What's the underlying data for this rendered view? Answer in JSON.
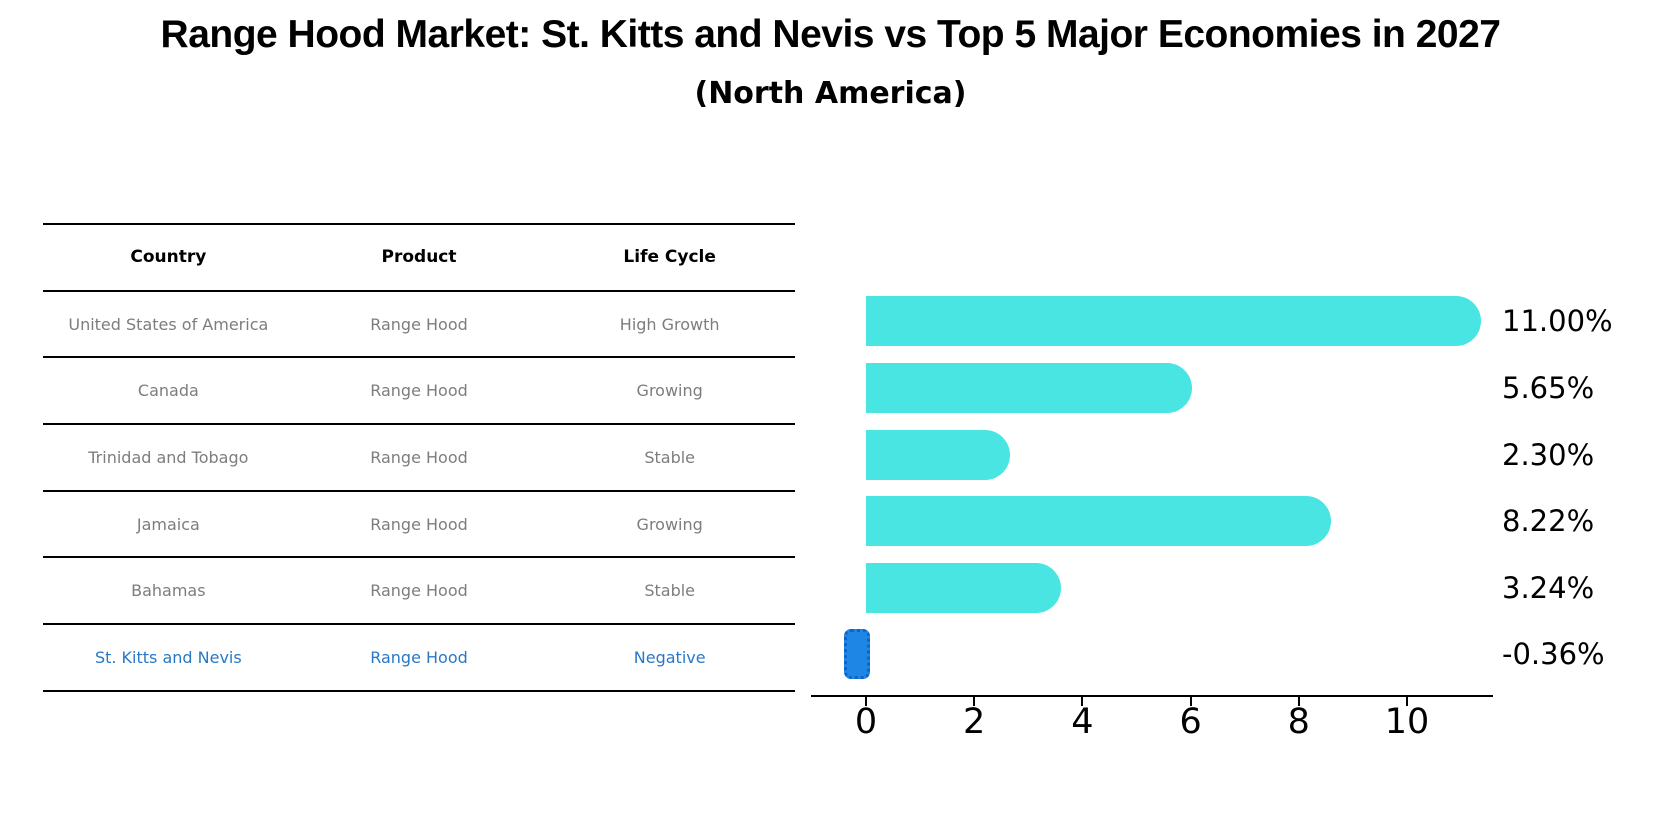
{
  "chart_data": {
    "type": "bar",
    "orientation": "horizontal",
    "title": "Range Hood Market: St. Kitts and Nevis vs Top 5 Major Economies in 2027",
    "subtitle": "(North America)",
    "categories": [
      "United States of America",
      "Canada",
      "Trinidad and Tobago",
      "Jamaica",
      "Bahamas",
      "St. Kitts and Nevis"
    ],
    "values": [
      11.0,
      5.65,
      2.3,
      8.22,
      3.24,
      -0.36
    ],
    "value_labels": [
      "11.00%",
      "5.65%",
      "2.30%",
      "8.22%",
      "3.24%",
      "-0.36%"
    ],
    "unit": "percent",
    "xlabel": "",
    "ylabel": "",
    "xticks": [
      "0",
      "2",
      "4",
      "6",
      "8",
      "10"
    ],
    "xtick_values": [
      0,
      2,
      4,
      6,
      8,
      10
    ],
    "xlim": [
      -1.0,
      11.6
    ],
    "grid": false,
    "legend": false,
    "bar_color": "#48e5e2",
    "highlight_bar_color": "#1e87e5",
    "highlight_bar_border_color": "#1161c9",
    "highlight_category": "St. Kitts and Nevis"
  },
  "table": {
    "headers": [
      "Country",
      "Product",
      "Life Cycle"
    ],
    "rows": [
      {
        "country": "United States of America",
        "product": "Range Hood",
        "life_cycle": "High Growth",
        "highlight": false
      },
      {
        "country": "Canada",
        "product": "Range Hood",
        "life_cycle": "Growing",
        "highlight": false
      },
      {
        "country": "Trinidad and Tobago",
        "product": "Range Hood",
        "life_cycle": "Stable",
        "highlight": false
      },
      {
        "country": "Jamaica",
        "product": "Range Hood",
        "life_cycle": "Growing",
        "highlight": false
      },
      {
        "country": "Bahamas",
        "product": "Range Hood",
        "life_cycle": "Stable",
        "highlight": false
      },
      {
        "country": "St. Kitts and Nevis",
        "product": "Range Hood",
        "life_cycle": "Negative",
        "highlight": true
      }
    ]
  },
  "colors": {
    "title_text": "#000000",
    "table_text": "#7d7d7d",
    "highlight_text": "#2878c8",
    "axis": "#000000",
    "value_label_text": "#000000"
  }
}
